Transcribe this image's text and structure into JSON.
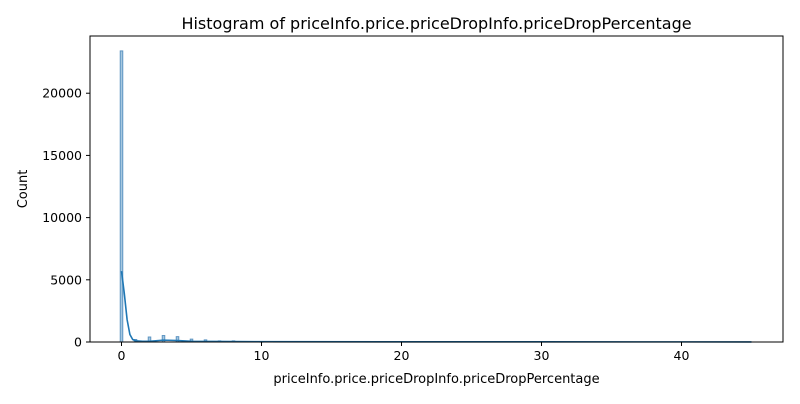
{
  "chart_data": {
    "type": "bar",
    "title": "Histogram of priceInfo.price.priceDropInfo.priceDropPercentage",
    "xlabel": "priceInfo.price.priceDropInfo.priceDropPercentage",
    "ylabel": "Count",
    "xlim": [
      -2.25,
      47.25
    ],
    "ylim": [
      0,
      24600
    ],
    "xticks": [
      0,
      10,
      20,
      30,
      40
    ],
    "yticks": [
      0,
      5000,
      10000,
      15000,
      20000
    ],
    "grid": false,
    "bins": [
      {
        "x": 0,
        "count": 23400
      },
      {
        "x": 1,
        "count": 200
      },
      {
        "x": 2,
        "count": 400
      },
      {
        "x": 3,
        "count": 520
      },
      {
        "x": 4,
        "count": 430
      },
      {
        "x": 5,
        "count": 230
      },
      {
        "x": 6,
        "count": 170
      },
      {
        "x": 7,
        "count": 90
      },
      {
        "x": 8,
        "count": 90
      },
      {
        "x": 9,
        "count": 40
      },
      {
        "x": 10,
        "count": 30
      }
    ],
    "bin_width": 0.18,
    "kde": {
      "x": [
        0,
        0.2,
        0.4,
        0.6,
        0.8,
        1.0,
        1.5,
        2.0,
        3.0,
        4.0,
        5.0,
        10,
        20,
        30,
        40,
        45
      ],
      "y": [
        5700,
        3900,
        1800,
        600,
        200,
        100,
        60,
        60,
        150,
        120,
        60,
        25,
        15,
        12,
        10,
        8
      ]
    },
    "colors": {
      "bar_fill": "#a6c8e0",
      "bar_edge": "#5e95c2",
      "kde_line": "#1f77b4"
    }
  }
}
